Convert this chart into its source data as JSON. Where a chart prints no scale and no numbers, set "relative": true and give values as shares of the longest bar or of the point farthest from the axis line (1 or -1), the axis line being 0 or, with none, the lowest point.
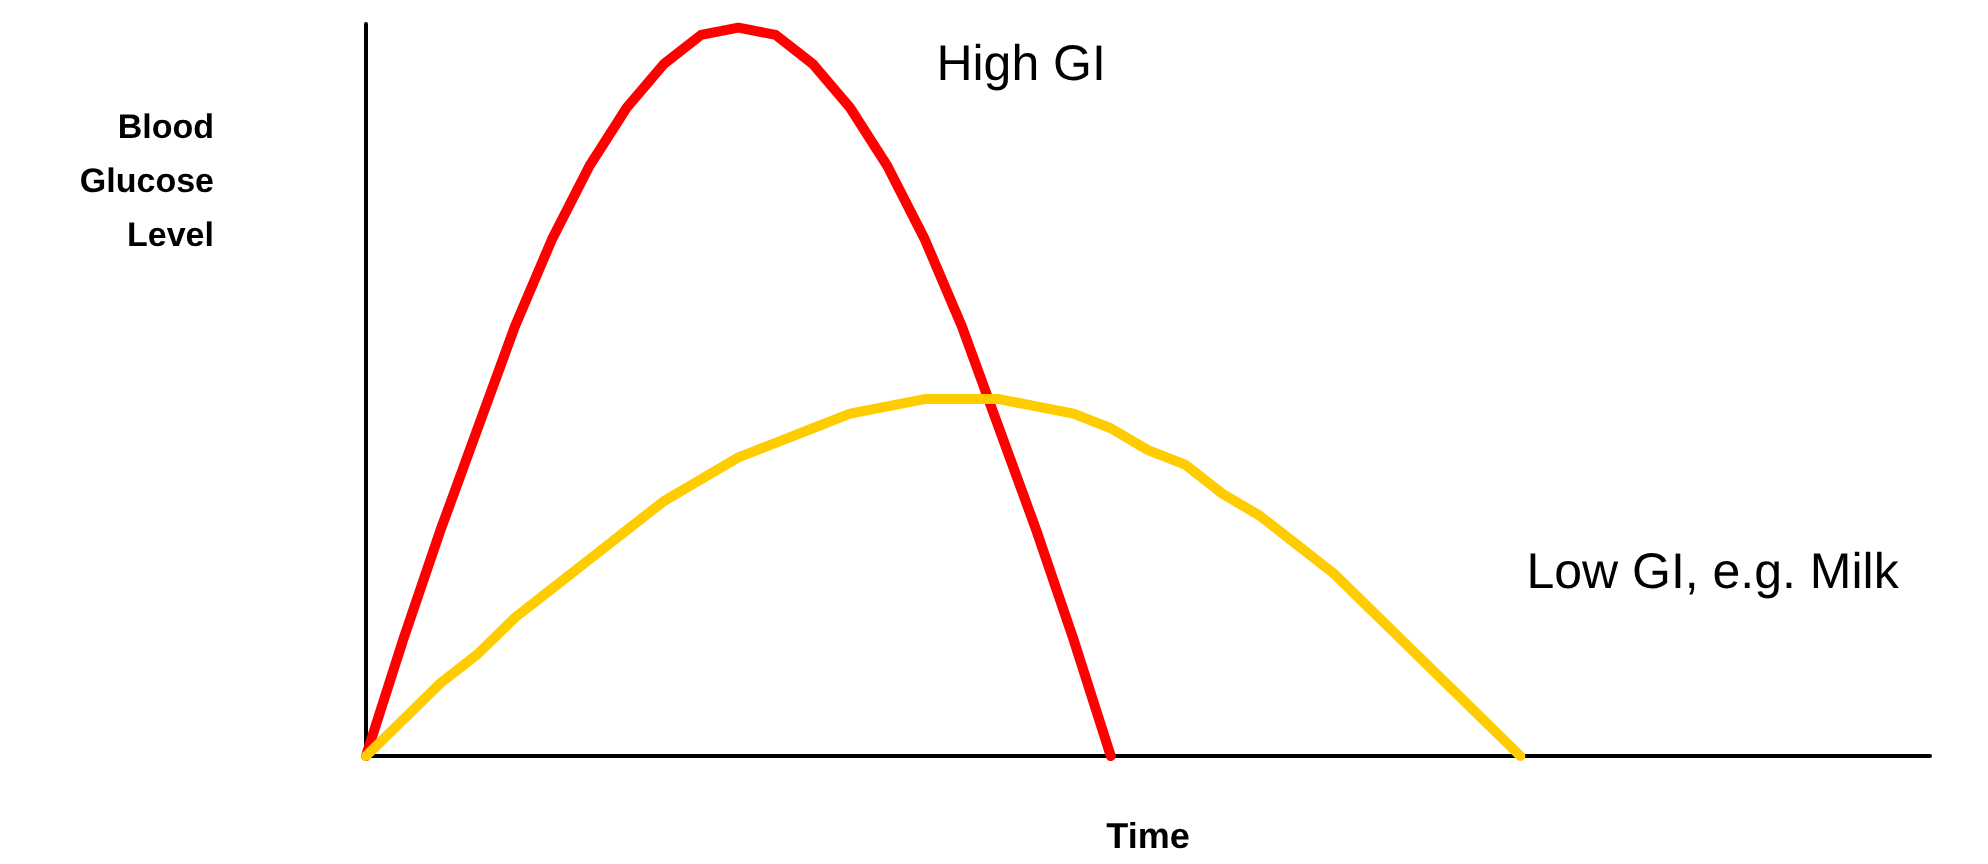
{
  "chart_data": {
    "type": "line",
    "relative": true,
    "xlabel": "Time",
    "ylabel": "Blood\nGlucose\nLevel",
    "categories": [
      null,
      null,
      null,
      null,
      null,
      null,
      null,
      null,
      null,
      null,
      null,
      null,
      null,
      null,
      null,
      null,
      null,
      null,
      null,
      null,
      null,
      null,
      null,
      null,
      null,
      null,
      null,
      null,
      null,
      null,
      null,
      null,
      null,
      null,
      null,
      null,
      null,
      null,
      null,
      null,
      null,
      null,
      null
    ],
    "series": [
      {
        "name": "High GI",
        "color": "#ff0000",
        "values": [
          0,
          0.16,
          0.31,
          0.45,
          0.59,
          0.71,
          0.81,
          0.89,
          0.95,
          0.99,
          1,
          0.99,
          0.95,
          0.89,
          0.81,
          0.71,
          0.59,
          0.45,
          0.31,
          0.16,
          0,
          null,
          null,
          null,
          null,
          null,
          null,
          null,
          null,
          null,
          null,
          null,
          null,
          null,
          null,
          null,
          null,
          null,
          null,
          null,
          null,
          null,
          null
        ]
      },
      {
        "name": "Low GI, e.g. Milk",
        "color": "#ffcc00",
        "values": [
          0,
          0.05,
          0.1,
          0.14,
          0.19,
          0.23,
          0.27,
          0.31,
          0.35,
          0.38,
          0.41,
          0.43,
          0.45,
          0.47,
          0.48,
          0.49,
          0.49,
          0.49,
          0.48,
          0.47,
          0.45,
          0.42,
          0.4,
          0.36,
          0.33,
          0.29,
          0.25,
          0.2,
          0.15,
          0.1,
          0.05,
          0,
          null,
          null,
          null,
          null,
          null,
          null,
          null,
          null,
          null,
          null,
          null
        ]
      }
    ],
    "legend": false,
    "grid": false,
    "marker": "none"
  }
}
